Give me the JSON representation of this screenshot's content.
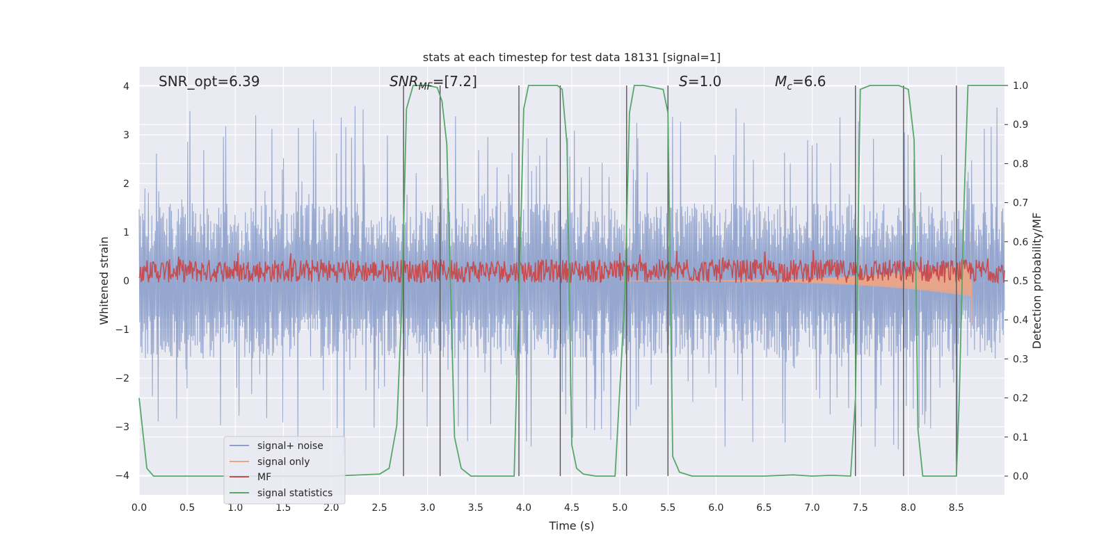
{
  "chart_data": {
    "type": "line",
    "title": "stats at each timestep for test data 18131 [signal=1]",
    "xlabel": "Time (s)",
    "ylabel": "Whitened strain",
    "y2label": "Detection probability/MF",
    "xlim": [
      0,
      9
    ],
    "ylim": [
      -4.4,
      4.4
    ],
    "y2lim": [
      -0.048,
      1.048
    ],
    "xticks": [
      "0.0",
      "0.5",
      "1.0",
      "1.5",
      "2.0",
      "2.5",
      "3.0",
      "3.5",
      "4.0",
      "4.5",
      "5.0",
      "5.5",
      "6.0",
      "6.5",
      "7.0",
      "7.5",
      "8.0",
      "8.5"
    ],
    "yticks": [
      "−4",
      "−3",
      "−2",
      "−1",
      "0",
      "1",
      "2",
      "3",
      "4"
    ],
    "y2ticks": [
      "0.0",
      "0.1",
      "0.2",
      "0.3",
      "0.4",
      "0.5",
      "0.6",
      "0.7",
      "0.8",
      "0.9",
      "1.0"
    ],
    "grid": true,
    "annotations": {
      "snr_opt": "SNR_opt=6.39",
      "snr_mf_base": "SNR",
      "snr_mf_sub": "MF",
      "snr_mf_val": "=[7.2]",
      "s_var": "S",
      "s_val": "=1.0",
      "mc_var": "M",
      "mc_sub": "c",
      "mc_val": "=6.6"
    },
    "legend": {
      "placement": "lower-left",
      "entries": [
        {
          "label": "signal+ noise",
          "color": "#8da0cb"
        },
        {
          "label": "signal only",
          "color": "#e8a58a"
        },
        {
          "label": "MF",
          "color": "#c44e52"
        },
        {
          "label": "signal statistics",
          "color": "#55a868"
        }
      ]
    },
    "series": [
      {
        "name": "signal+ noise",
        "color": "#8da0cb",
        "style": "dense noise, amplitude envelope about ±1.6 with peaks to ±3.6",
        "envelope": 1.6,
        "peak": 3.6
      },
      {
        "name": "signal only",
        "color": "#e8a58a",
        "style": "chirp from about t=5.0 to t=8.65 s",
        "start": 5.0,
        "end": 8.65,
        "final_amplitude_high": 1.0,
        "final_amplitude_low": -0.9
      },
      {
        "name": "MF",
        "color": "#c44e52",
        "axis": "right",
        "baseline": 0.525,
        "spread": 0.03
      },
      {
        "name": "signal statistics",
        "color": "#55a868",
        "axis": "right",
        "x": [
          0.0,
          0.08,
          0.15,
          0.3,
          1.0,
          2.0,
          2.5,
          2.6,
          2.68,
          2.73,
          2.78,
          2.85,
          3.0,
          3.1,
          3.15,
          3.2,
          3.28,
          3.35,
          3.45,
          3.9,
          3.95,
          4.0,
          4.05,
          4.35,
          4.4,
          4.45,
          4.5,
          4.55,
          4.62,
          4.75,
          4.95,
          5.05,
          5.1,
          5.15,
          5.25,
          5.45,
          5.5,
          5.55,
          5.62,
          5.75,
          6.0,
          6.5,
          6.8,
          7.0,
          7.2,
          7.4,
          7.45,
          7.5,
          7.6,
          7.9,
          8.0,
          8.06,
          8.1,
          8.15,
          8.5,
          8.53,
          8.58,
          8.62,
          9.0
        ],
        "y": [
          0.2,
          0.02,
          0.0,
          0.0,
          0.0,
          0.0,
          0.005,
          0.02,
          0.13,
          0.42,
          0.94,
          1.0,
          1.0,
          0.995,
          0.96,
          0.85,
          0.1,
          0.02,
          0.0,
          0.0,
          0.45,
          0.94,
          1.0,
          1.0,
          0.99,
          0.85,
          0.08,
          0.02,
          0.005,
          0.0,
          0.0,
          0.45,
          0.93,
          1.0,
          1.0,
          0.99,
          0.93,
          0.05,
          0.01,
          0.0,
          0.0,
          0.0,
          0.003,
          0.0,
          0.002,
          0.0,
          0.2,
          0.99,
          1.0,
          1.0,
          0.99,
          0.86,
          0.12,
          0.0,
          0.0,
          0.2,
          0.7,
          1.0,
          1.0
        ]
      }
    ],
    "detection_markers": [
      2.75,
      3.13,
      3.95,
      4.38,
      5.07,
      5.5,
      7.45,
      7.95,
      8.5
    ]
  }
}
